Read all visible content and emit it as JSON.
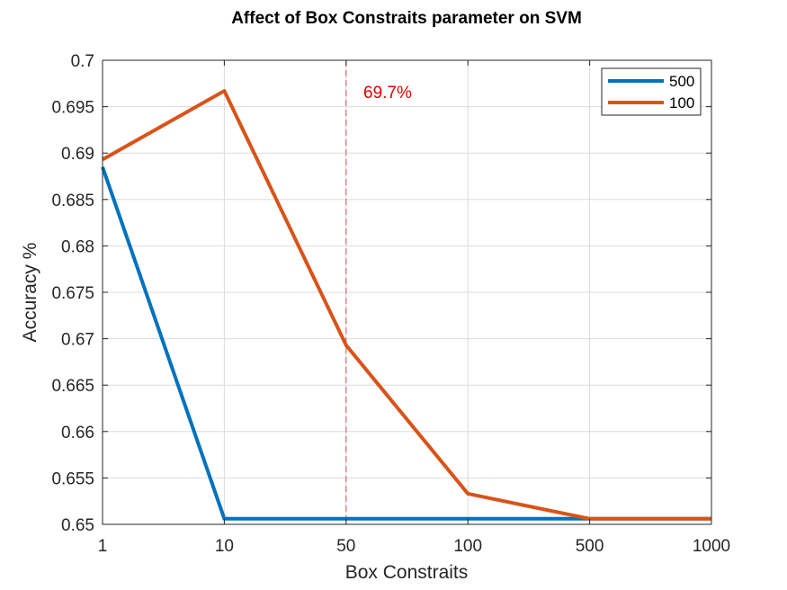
{
  "chart_data": {
    "type": "line",
    "title": "Affect of Box Constraits parameter on SVM",
    "xlabel": "Box Constraits",
    "ylabel": "Accuracy %",
    "categories": [
      "1",
      "10",
      "50",
      "100",
      "500",
      "1000"
    ],
    "ylim": [
      0.65,
      0.7
    ],
    "yticks": [
      "0.65",
      "0.655",
      "0.66",
      "0.665",
      "0.67",
      "0.675",
      "0.68",
      "0.685",
      "0.69",
      "0.695",
      "0.7"
    ],
    "grid": true,
    "legend_position": "top-right",
    "series": [
      {
        "name": "500",
        "color": "#0072BD",
        "values": [
          0.6885,
          0.6506,
          0.6506,
          0.6506,
          0.6506,
          0.6506
        ]
      },
      {
        "name": "100",
        "color": "#D95319",
        "values": [
          0.6893,
          0.6967,
          0.6693,
          0.6533,
          0.6506,
          0.6506
        ]
      }
    ],
    "reference_line": {
      "category": "50",
      "style": "dashed",
      "color": "#d9534f"
    },
    "annotation": {
      "text": "69.7%",
      "color": "#e00000"
    }
  }
}
